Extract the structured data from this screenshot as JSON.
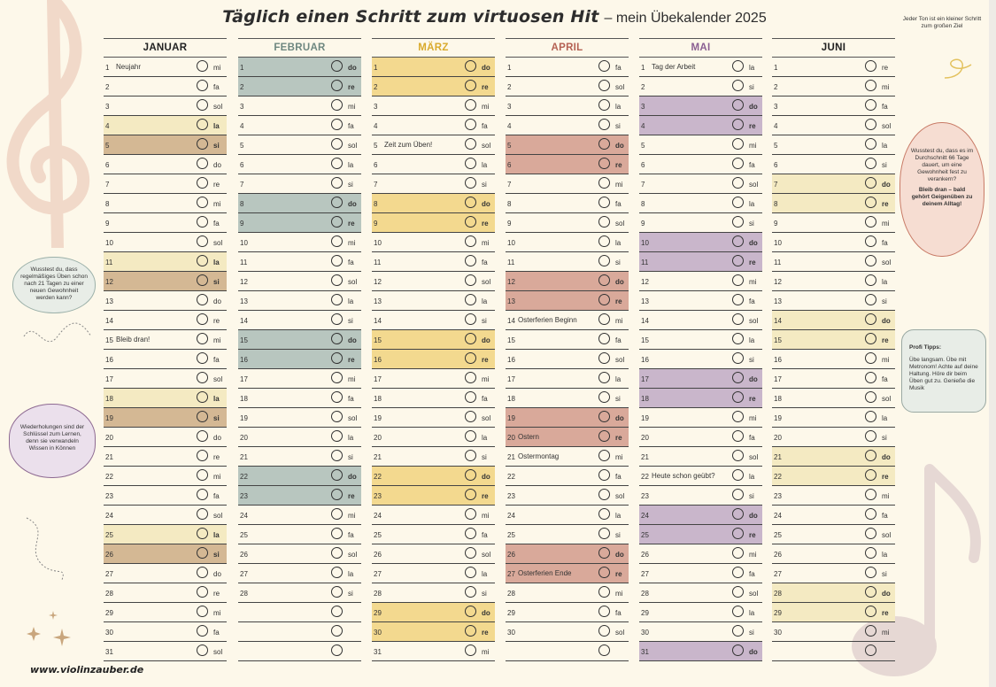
{
  "title": {
    "main": "Täglich einen Schritt zum virtuosen Hit",
    "sub": "– mein Übekalender 2025"
  },
  "footer_url": "www.violinzauber.de",
  "bubbles": {
    "top_right": "Jeder Ton ist ein kleiner Schritt zum großen Ziel",
    "left_green": "Wusstest du, dass regelmäßiges Üben schon nach 21 Tagen zu einer neuen Gewohnheit werden kann?",
    "left_purple": "Wiederholungen sind der Schlüssel zum Lernen, denn sie verwandeln Wissen in Können",
    "right_red_1": "Wusstest du, dass es im Durchschnitt 66 Tage dauert, um eine Gewohnheit fest zu verankern?",
    "right_red_2": "Bleib dran – bald gehört Geigenüben zu deinem Alltag!",
    "right_green_title": "Profi Tipps:",
    "right_green_body": "Übe langsam. Übe mit Metronom! Achte auf deine Haltung. Höre dir beim Üben gut zu. Genieße die Musik"
  },
  "colors": {
    "background": "#fdf8ea",
    "JANUAR": {
      "la": "#f4eac2",
      "si": "#d4b894",
      "head": "#222222"
    },
    "FEBRUAR": {
      "la": "#b8c6bf",
      "si": "#7d8f86",
      "head": "#6e8780"
    },
    "MÄRZ": {
      "la": "#f3d98f",
      "si": "#e6bf52",
      "head": "#d9aa2c"
    },
    "APRIL": {
      "la": "#d9a99a",
      "si": "#b9675a",
      "head": "#b56153"
    },
    "MAI": {
      "la": "#c9b6cb",
      "si": "#9c7fa1",
      "head": "#8a5f92"
    },
    "JUNI": {
      "la": "#f4eac2",
      "si": "#d4b894",
      "head": "#222222"
    }
  },
  "months": [
    {
      "name": "JANUAR",
      "days": 31,
      "start_tone": 0,
      "highlight": [
        4,
        5,
        11,
        12,
        18,
        19,
        25,
        26
      ],
      "notes": {
        "1": "Neujahr",
        "15": "Bleib dran!"
      }
    },
    {
      "name": "FEBRUAR",
      "days": 28,
      "start_tone": 5,
      "highlight": [
        1,
        2,
        8,
        9,
        15,
        16,
        22,
        23
      ],
      "notes": {}
    },
    {
      "name": "MÄRZ",
      "days": 31,
      "start_tone": 5,
      "highlight": [
        1,
        2,
        8,
        9,
        15,
        16,
        22,
        23,
        29,
        30
      ],
      "notes": {
        "5": "Zeit zum Üben!"
      }
    },
    {
      "name": "APRIL",
      "days": 30,
      "start_tone": 1,
      "highlight": [
        5,
        6,
        12,
        13,
        19,
        20,
        26,
        27
      ],
      "notes": {
        "14": "Osterferien Beginn",
        "20": "Ostern",
        "21": "Ostermontag",
        "27": "Osterferien Ende"
      }
    },
    {
      "name": "MAI",
      "days": 31,
      "start_tone": 3,
      "highlight": [
        3,
        4,
        10,
        11,
        17,
        18,
        24,
        25,
        31
      ],
      "notes": {
        "1": "Tag der Arbeit",
        "22": "Heute schon geübt?"
      }
    },
    {
      "name": "JUNI",
      "days": 30,
      "start_tone": 6,
      "highlight": [
        7,
        8,
        14,
        15,
        21,
        22,
        28,
        29
      ],
      "notes": {}
    }
  ],
  "tones": [
    "mi",
    "fa",
    "sol",
    "la",
    "si",
    "do",
    "re"
  ]
}
